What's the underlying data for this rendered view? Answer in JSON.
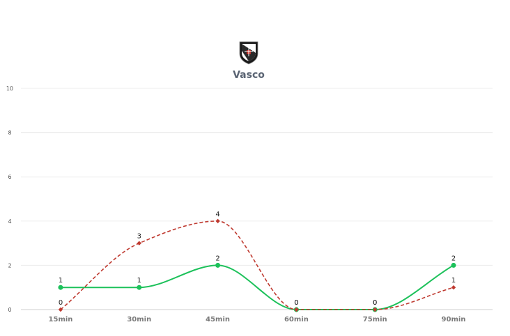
{
  "chart_data": {
    "type": "line",
    "title": "Vasco",
    "logo": "vasco-crest-icon",
    "categories": [
      "15min",
      "30min",
      "45min",
      "60min",
      "75min",
      "90min"
    ],
    "ylim": [
      0,
      10
    ],
    "yticks": [
      0,
      2,
      4,
      6,
      8,
      10
    ],
    "grid": true,
    "series": [
      {
        "key": "green",
        "color": "#1cc15a",
        "dashed": false,
        "marker": "circle",
        "values": [
          1,
          1,
          2,
          0,
          0,
          2
        ]
      },
      {
        "key": "red",
        "color": "#bf3a30",
        "dashed": true,
        "marker": "diamond",
        "values": [
          0,
          3,
          4,
          0,
          0,
          1
        ]
      }
    ]
  }
}
